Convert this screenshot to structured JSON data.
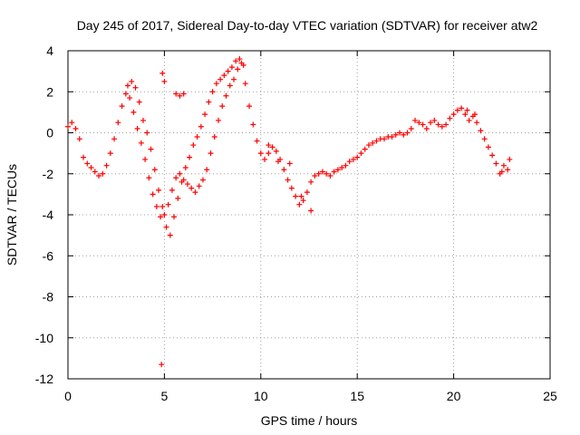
{
  "chart_data": {
    "type": "scatter",
    "title": "Day 245 of 2017, Sidereal Day-to-day VTEC variation (SDTVAR) for receiver atw2",
    "xlabel": "GPS time / hours",
    "ylabel": "SDTVAR / TECUs",
    "xlim": [
      0,
      25
    ],
    "ylim": [
      -12,
      4
    ],
    "xticks": [
      "0",
      "5",
      "10",
      "15",
      "20",
      "25"
    ],
    "yticks": [
      "4",
      "2",
      "0",
      "-2",
      "-4",
      "-6",
      "-8",
      "-10",
      "-12"
    ],
    "grid": true,
    "marker": "+",
    "series_color": "#ff0000",
    "series": [
      {
        "name": "SDTVAR",
        "x": [
          0.0,
          0.2,
          0.4,
          0.6,
          0.8,
          1.0,
          1.2,
          1.4,
          1.6,
          1.8,
          2.0,
          2.2,
          2.4,
          2.6,
          2.8,
          3.0,
          3.2,
          3.4,
          3.6,
          3.8,
          4.0,
          4.2,
          4.4,
          4.6,
          4.8,
          5.0,
          5.2,
          5.4,
          5.6,
          5.8,
          6.0,
          6.2,
          6.4,
          6.6,
          6.8,
          7.0,
          7.2,
          7.4,
          7.6,
          7.8,
          8.0,
          8.2,
          8.4,
          8.6,
          8.8,
          9.0,
          9.2,
          9.4,
          9.6,
          9.8,
          10.0,
          10.2,
          10.4,
          10.6,
          10.8,
          11.0,
          11.2,
          11.4,
          11.6,
          11.8,
          12.0,
          12.2,
          12.4,
          12.6,
          12.8,
          13.0,
          13.2,
          13.4,
          13.6,
          13.8,
          14.0,
          14.2,
          14.4,
          14.6,
          14.8,
          15.0,
          15.2,
          15.4,
          15.6,
          15.8,
          16.0,
          16.2,
          16.4,
          16.6,
          16.8,
          17.0,
          17.2,
          17.4,
          17.6,
          17.8,
          18.0,
          18.2,
          18.4,
          18.6,
          18.8,
          19.0,
          19.2,
          19.4,
          19.6,
          19.8,
          20.0,
          20.2,
          20.4,
          20.6,
          20.8,
          21.0,
          21.2,
          21.4,
          21.6,
          21.8,
          22.0,
          22.2,
          22.4,
          22.6,
          22.8,
          3.1,
          3.3,
          3.5,
          3.7,
          3.9,
          4.1,
          4.3,
          4.5,
          4.7,
          4.9,
          5.1,
          5.3,
          5.5,
          5.7,
          5.9,
          6.1,
          6.3,
          6.5,
          6.7,
          6.9,
          7.1,
          7.3,
          7.5,
          7.7,
          7.9,
          8.1,
          8.3,
          8.5,
          8.7,
          8.9,
          9.1,
          4.9,
          5.0,
          5.6,
          5.8,
          6.0,
          10.4,
          10.9,
          11.5,
          12.1,
          12.6,
          20.7,
          21.1,
          22.5,
          22.9,
          4.85
        ],
        "y": [
          0.3,
          0.5,
          0.2,
          -0.3,
          -1.2,
          -1.5,
          -1.7,
          -1.9,
          -2.1,
          -2.0,
          -1.6,
          -1.0,
          -0.3,
          0.5,
          1.3,
          1.9,
          1.7,
          1.0,
          0.2,
          -0.5,
          -1.3,
          -2.2,
          -3.0,
          -3.6,
          -4.1,
          -4.0,
          -3.5,
          -2.8,
          -2.2,
          -2.0,
          -2.3,
          -2.5,
          -2.7,
          -2.9,
          -2.6,
          -2.3,
          -1.8,
          -1.0,
          -0.2,
          0.6,
          1.3,
          1.8,
          2.3,
          2.6,
          3.1,
          3.4,
          2.4,
          1.3,
          0.4,
          -0.4,
          -1.0,
          -1.3,
          -1.0,
          -0.7,
          -0.9,
          -1.3,
          -1.8,
          -2.3,
          -2.7,
          -3.1,
          -3.5,
          -3.3,
          -2.9,
          -2.4,
          -2.1,
          -2.0,
          -1.9,
          -2.0,
          -2.1,
          -1.9,
          -1.8,
          -1.7,
          -1.6,
          -1.4,
          -1.3,
          -1.2,
          -1.0,
          -0.8,
          -0.6,
          -0.5,
          -0.4,
          -0.3,
          -0.3,
          -0.2,
          -0.2,
          -0.1,
          0.0,
          -0.1,
          0.0,
          0.2,
          0.6,
          0.5,
          0.4,
          0.2,
          0.5,
          0.6,
          0.4,
          0.3,
          0.4,
          0.7,
          0.9,
          1.1,
          1.2,
          0.9,
          0.6,
          0.8,
          0.5,
          0.1,
          -0.3,
          -0.7,
          -1.1,
          -1.5,
          -2.0,
          -1.6,
          -1.8,
          2.3,
          2.5,
          2.2,
          1.5,
          0.6,
          0.0,
          -0.8,
          -1.8,
          -2.8,
          -3.6,
          -4.6,
          -5.0,
          -4.1,
          -3.2,
          -2.4,
          -1.7,
          -1.2,
          -0.6,
          -0.2,
          0.3,
          0.9,
          1.5,
          2.0,
          2.4,
          2.6,
          2.8,
          3.0,
          3.2,
          3.5,
          3.6,
          3.3,
          2.9,
          2.5,
          1.9,
          1.8,
          1.9,
          -0.6,
          -1.4,
          -1.5,
          -3.1,
          -3.8,
          1.1,
          0.9,
          -1.9,
          -1.3,
          -11.3
        ]
      }
    ]
  }
}
